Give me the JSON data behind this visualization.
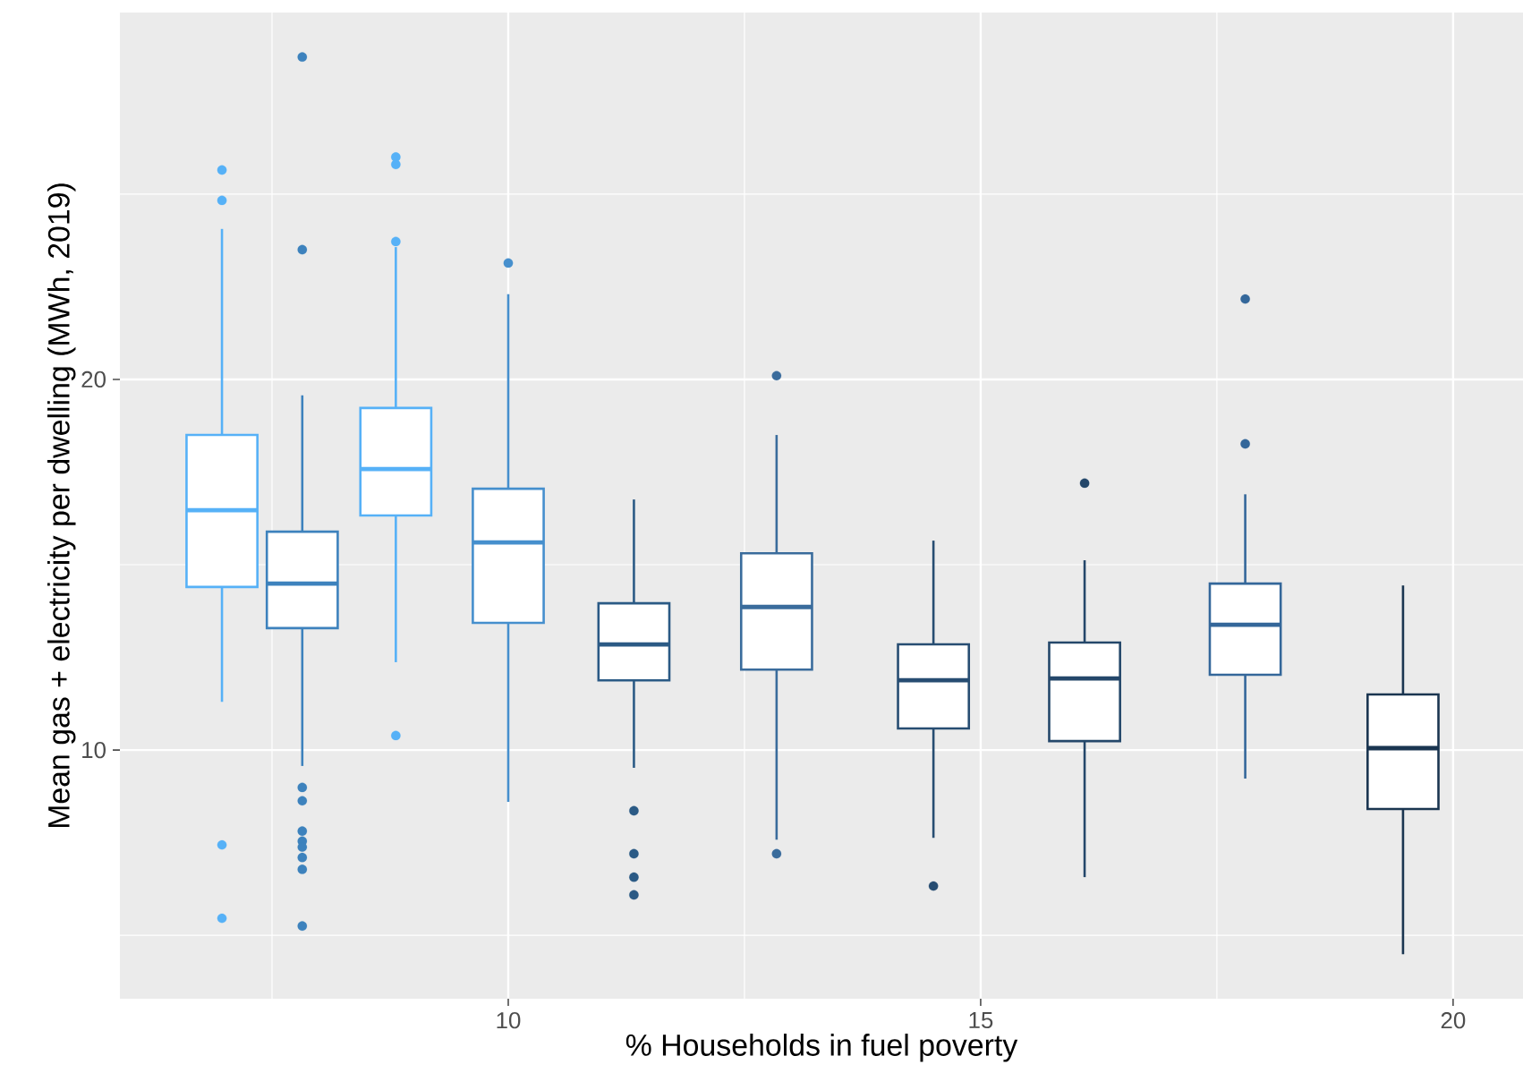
{
  "chart_data": {
    "type": "box",
    "xlabel": "% Households in fuel poverty",
    "ylabel": "Mean gas + electricity per dwelling (MWh, 2019)",
    "x": [
      6.97,
      7.82,
      8.81,
      10.0,
      11.33,
      12.84,
      14.5,
      16.1,
      17.8,
      19.47
    ],
    "boxes": [
      {
        "low": 11.3,
        "q1": 14.4,
        "median": 16.47,
        "q3": 18.5,
        "high": 24.06,
        "outliers": [
          25.65,
          24.83,
          7.44,
          5.46
        ]
      },
      {
        "low": 9.57,
        "q1": 13.29,
        "median": 14.49,
        "q3": 15.89,
        "high": 19.57,
        "outliers": [
          28.7,
          23.5,
          8.99,
          8.63,
          7.81,
          7.54,
          7.38,
          7.1,
          6.78,
          5.25
        ]
      },
      {
        "low": 12.37,
        "q1": 16.33,
        "median": 17.58,
        "q3": 19.23,
        "high": 23.57,
        "outliers": [
          26.0,
          25.8,
          23.72,
          10.39
        ]
      },
      {
        "low": 8.6,
        "q1": 13.43,
        "median": 15.6,
        "q3": 17.05,
        "high": 22.3,
        "outliers": [
          23.14
        ]
      },
      {
        "low": 9.52,
        "q1": 11.88,
        "median": 12.85,
        "q3": 13.96,
        "high": 16.76,
        "outliers": [
          8.36,
          7.2,
          6.57,
          6.09
        ]
      },
      {
        "low": 7.58,
        "q1": 12.17,
        "median": 13.86,
        "q3": 15.31,
        "high": 18.5,
        "outliers": [
          20.1,
          7.2
        ]
      },
      {
        "low": 7.63,
        "q1": 10.58,
        "median": 11.88,
        "q3": 12.85,
        "high": 15.65,
        "outliers": [
          6.33
        ]
      },
      {
        "low": 6.57,
        "q1": 10.24,
        "median": 11.93,
        "q3": 12.9,
        "high": 15.12,
        "outliers": [
          17.2
        ]
      },
      {
        "low": 9.23,
        "q1": 12.03,
        "median": 13.38,
        "q3": 14.49,
        "high": 16.9,
        "outliers": [
          22.17,
          18.26
        ]
      },
      {
        "low": 4.49,
        "q1": 8.41,
        "median": 10.05,
        "q3": 11.5,
        "high": 14.44
      }
    ],
    "colors": [
      "#56b1f7",
      "#3d82bd",
      "#56b1f7",
      "#468fcd",
      "#2b5a85",
      "#3a6c9c",
      "#274d72",
      "#24476a",
      "#34679a",
      "#1a3550"
    ],
    "xlim": [
      5.89,
      20.74
    ],
    "ylim": [
      3.29,
      29.9
    ],
    "xticks": [
      10,
      15,
      20
    ],
    "yticks": [
      10,
      20
    ],
    "grid": true
  }
}
